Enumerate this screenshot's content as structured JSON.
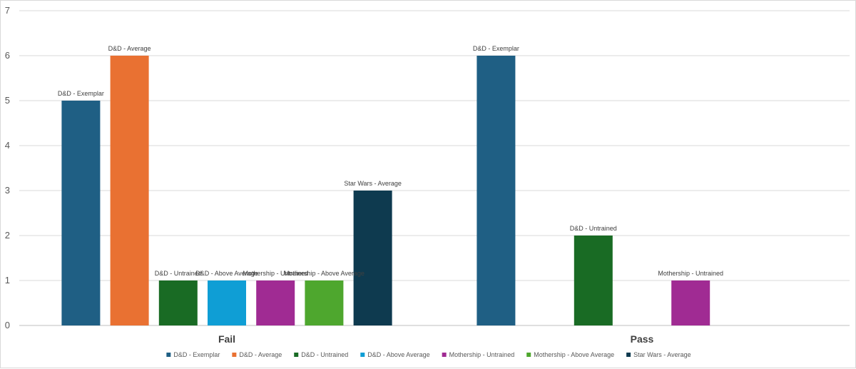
{
  "chart_data": {
    "type": "bar",
    "categories": [
      "Fail",
      "Pass"
    ],
    "ylim": [
      0,
      7
    ],
    "yticks": [
      0,
      1,
      2,
      3,
      4,
      5,
      6,
      7
    ],
    "grid": true,
    "legend_position": "bottom",
    "show_data_labels": "series_name",
    "series": [
      {
        "name": "D&D - Exemplar",
        "color": "#1F5F84",
        "values": [
          5,
          6
        ]
      },
      {
        "name": "D&D - Average",
        "color": "#E97132",
        "values": [
          6,
          null
        ]
      },
      {
        "name": "D&D - Untrained",
        "color": "#196B24",
        "values": [
          1,
          2
        ]
      },
      {
        "name": "D&D - Above Average",
        "color": "#0F9ED5",
        "values": [
          1,
          null
        ]
      },
      {
        "name": "Mothership - Untrained",
        "color": "#A02B93",
        "values": [
          1,
          1
        ]
      },
      {
        "name": "Mothership - Above Average",
        "color": "#4EA72E",
        "values": [
          1,
          null
        ]
      },
      {
        "name": "Star Wars - Average",
        "color": "#0E3A4F",
        "values": [
          3,
          null
        ]
      }
    ]
  }
}
